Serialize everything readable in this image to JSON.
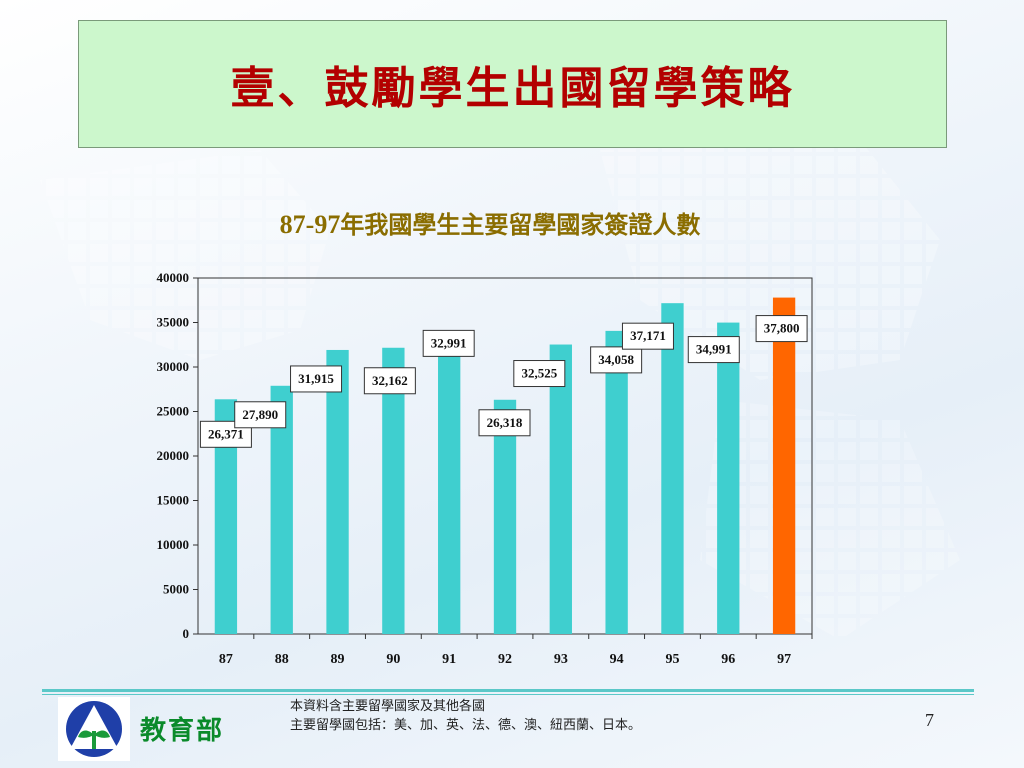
{
  "slide": {
    "title": "壹、鼓勵學生出國留學策略",
    "chart_title_num": "87-97",
    "chart_title_text": "年我國學生主要留學國家簽證人數",
    "org_name": "教育部",
    "note_line1": "本資料含主要留學國家及其他各國",
    "note_line2": "主要留學國包括：美、加、英、法、德、澳、紐西蘭、日本。",
    "page_number": "7",
    "colors": {
      "title": "#b30000",
      "title_bg": "#ccf7cc",
      "chart_title": "#8a6d00",
      "bar": "#3fcfcf",
      "highlight_bar": "#ff6600",
      "org": "#0a8a2a"
    }
  },
  "chart_data": {
    "type": "bar",
    "categories": [
      "87",
      "88",
      "89",
      "90",
      "91",
      "92",
      "93",
      "94",
      "95",
      "96",
      "97"
    ],
    "values": [
      26371,
      27890,
      31915,
      32162,
      32991,
      26318,
      32525,
      34058,
      37171,
      34991,
      37800
    ],
    "data_labels": [
      "26,371",
      "27,890",
      "31,915",
      "32,162",
      "32,991",
      "26,318",
      "32,525",
      "34,058",
      "37,171",
      "34,991",
      "37,800"
    ],
    "highlight_index": 10,
    "ylim": [
      0,
      40000
    ],
    "yticks": [
      "0",
      "5000",
      "10000",
      "15000",
      "20000",
      "25000",
      "30000",
      "35000",
      "40000"
    ],
    "grid": false,
    "xlabel": "",
    "ylabel": ""
  }
}
